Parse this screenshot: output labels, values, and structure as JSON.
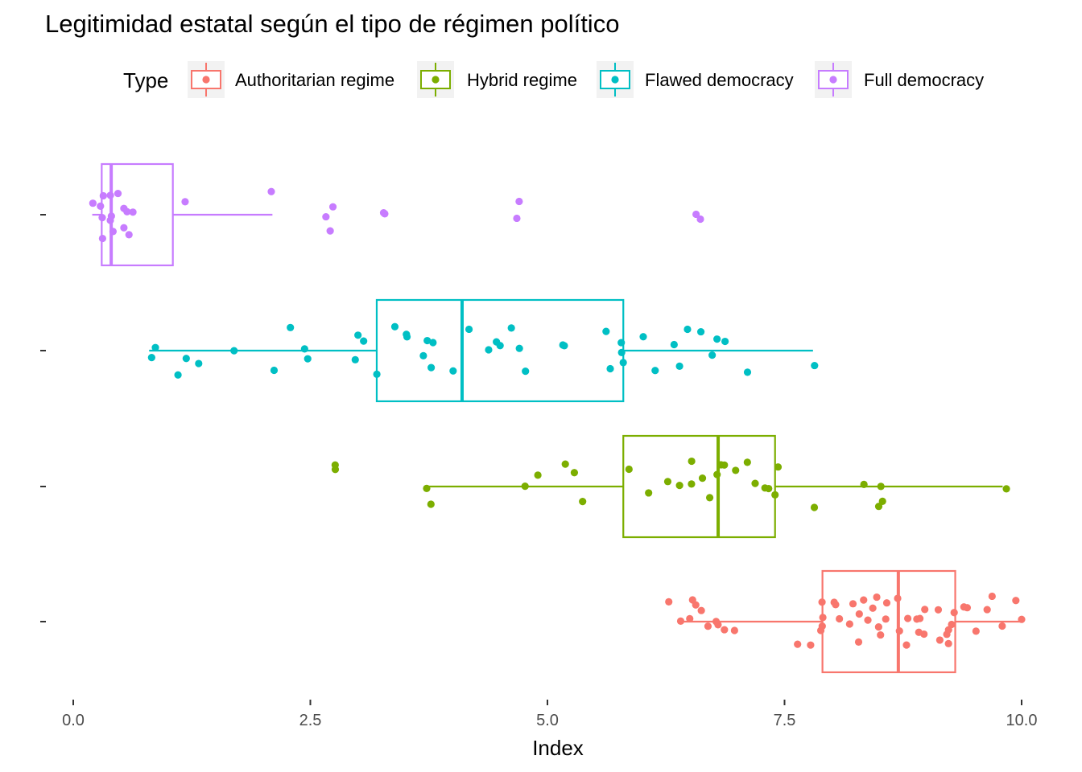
{
  "chart_data": {
    "type": "boxplot",
    "title": "Legitimidad estatal según el tipo de régimen político",
    "xlabel": "Index",
    "ylabel": "",
    "xlim": [
      0,
      10
    ],
    "x_ticks": [
      "0.0",
      "2.5",
      "5.0",
      "7.5",
      "10.0"
    ],
    "x_tick_values": [
      0,
      2.5,
      5,
      7.5,
      10
    ],
    "legend": {
      "title": "Type",
      "position": "top"
    },
    "grid": false,
    "series": [
      {
        "name": "Authoritarian regime",
        "color": "#F8766D",
        "box": {
          "min": 6.4,
          "q1": 7.9,
          "median": 8.7,
          "q3": 9.3,
          "max": 10.0
        },
        "points": [
          6.4,
          6.3,
          6.5,
          6.5,
          6.7,
          6.6,
          6.9,
          6.8,
          7.0,
          6.8,
          6.6,
          7.6,
          7.9,
          7.8,
          7.9,
          7.9,
          8.0,
          8.1,
          8.2,
          8.2,
          8.3,
          8.3,
          8.4,
          8.4,
          8.5,
          8.5,
          8.6,
          8.6,
          8.7,
          8.7,
          8.8,
          8.8,
          8.9,
          8.9,
          9.0,
          9.0,
          9.1,
          9.1,
          9.2,
          9.2,
          9.3,
          9.3,
          9.4,
          9.5,
          9.6,
          9.7,
          9.8,
          9.9,
          10.0,
          7.9,
          8.0,
          8.3,
          8.5,
          8.9,
          9.2,
          9.4
        ]
      },
      {
        "name": "Hybrid regime",
        "color": "#7CAE00",
        "box": {
          "min": 3.7,
          "q1": 5.8,
          "median": 6.8,
          "q3": 7.4,
          "max": 9.8
        },
        "points": [
          2.8,
          2.8,
          3.7,
          3.8,
          4.8,
          4.9,
          5.2,
          5.3,
          5.4,
          5.9,
          6.1,
          6.3,
          6.4,
          6.5,
          6.5,
          6.6,
          6.7,
          6.8,
          6.8,
          6.9,
          7.0,
          7.1,
          7.2,
          7.3,
          7.3,
          7.4,
          7.4,
          7.8,
          8.3,
          8.5,
          8.5,
          8.5,
          9.8
        ]
      },
      {
        "name": "Flawed democracy",
        "color": "#00BFC4",
        "box": {
          "min": 0.8,
          "q1": 3.2,
          "median": 4.1,
          "q3": 5.8,
          "max": 7.8
        },
        "points": [
          0.8,
          0.9,
          1.1,
          1.2,
          1.3,
          1.7,
          2.1,
          2.3,
          2.4,
          2.5,
          3.0,
          3.0,
          3.1,
          3.2,
          3.4,
          3.5,
          3.5,
          3.7,
          3.7,
          3.8,
          3.8,
          4.0,
          4.2,
          4.4,
          4.5,
          4.5,
          4.6,
          4.7,
          4.8,
          5.2,
          5.2,
          5.6,
          5.7,
          5.8,
          5.8,
          5.8,
          6.0,
          6.1,
          6.3,
          6.4,
          6.5,
          6.6,
          6.7,
          6.8,
          6.9,
          7.1,
          7.8
        ]
      },
      {
        "name": "Full democracy",
        "color": "#C77CFF",
        "box": {
          "min": 0.2,
          "q1": 0.3,
          "median": 0.4,
          "q3": 1.05,
          "max": 2.1
        },
        "points": [
          0.2,
          0.3,
          0.3,
          0.3,
          0.3,
          0.4,
          0.4,
          0.4,
          0.4,
          0.5,
          0.5,
          0.5,
          0.6,
          0.6,
          0.6,
          1.2,
          2.1,
          2.7,
          2.7,
          2.7,
          3.3,
          3.3,
          4.7,
          4.7,
          6.6,
          6.6
        ]
      }
    ]
  }
}
